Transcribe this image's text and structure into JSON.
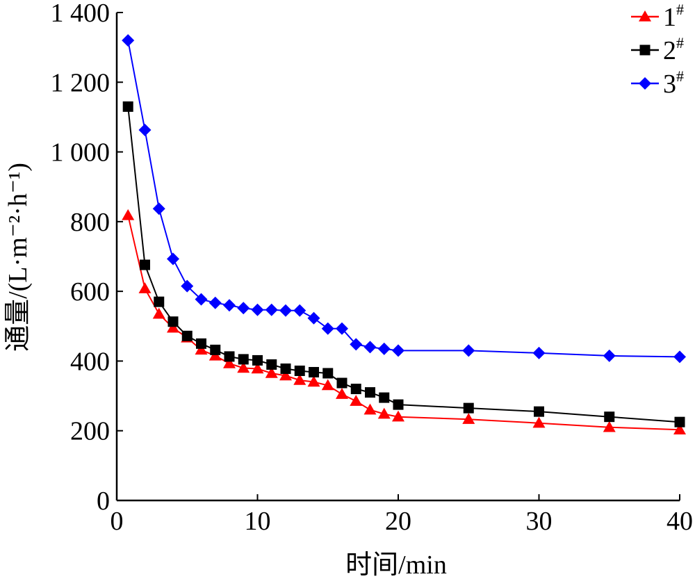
{
  "chart_data": {
    "type": "line",
    "title": "",
    "xlabel": "时间/min",
    "ylabel": "通量/(L·m⁻²·h⁻¹)",
    "xlim": [
      0,
      40
    ],
    "ylim": [
      0,
      1400
    ],
    "xticks": [
      0,
      10,
      20,
      30,
      40
    ],
    "xtick_labels": [
      "0",
      "10",
      "20",
      "30",
      "40"
    ],
    "yticks": [
      0,
      200,
      400,
      600,
      800,
      1000,
      1200,
      1400
    ],
    "ytick_labels": [
      "0",
      "200",
      "400",
      "600",
      "800",
      "1 000",
      "1 200",
      "1 400"
    ],
    "grid": false,
    "legend_position": "top-right",
    "series": [
      {
        "name": "1#",
        "legend_main": "1",
        "legend_sup": "#",
        "color": "#ff0000",
        "marker": "triangle",
        "x": [
          0.8,
          2,
          3,
          4,
          5,
          6,
          7,
          8,
          9,
          10,
          11,
          12,
          13,
          14,
          15,
          16,
          17,
          18,
          19,
          20,
          25,
          30,
          35,
          40
        ],
        "y": [
          818,
          608,
          535,
          495,
          467,
          432,
          415,
          393,
          380,
          378,
          365,
          358,
          345,
          340,
          330,
          305,
          285,
          260,
          248,
          240,
          233,
          222,
          210,
          203
        ]
      },
      {
        "name": "2#",
        "legend_main": "2",
        "legend_sup": "#",
        "color": "#000000",
        "marker": "square",
        "x": [
          0.8,
          2,
          3,
          4,
          5,
          6,
          7,
          8,
          9,
          10,
          11,
          12,
          13,
          14,
          15,
          16,
          17,
          18,
          19,
          20,
          25,
          30,
          35,
          40
        ],
        "y": [
          1130,
          676,
          570,
          513,
          472,
          450,
          432,
          413,
          405,
          402,
          390,
          378,
          372,
          368,
          365,
          337,
          320,
          310,
          295,
          275,
          265,
          255,
          240,
          225
        ]
      },
      {
        "name": "3#",
        "legend_main": "3",
        "legend_sup": "#",
        "color": "#0000ff",
        "marker": "diamond",
        "x": [
          0.8,
          2,
          3,
          4,
          5,
          6,
          7,
          8,
          9,
          10,
          11,
          12,
          13,
          14,
          15,
          16,
          17,
          18,
          19,
          20,
          25,
          30,
          35,
          40
        ],
        "y": [
          1320,
          1063,
          837,
          693,
          615,
          577,
          567,
          560,
          552,
          547,
          547,
          545,
          545,
          523,
          493,
          493,
          448,
          440,
          435,
          430,
          430,
          423,
          415,
          412
        ]
      }
    ]
  }
}
